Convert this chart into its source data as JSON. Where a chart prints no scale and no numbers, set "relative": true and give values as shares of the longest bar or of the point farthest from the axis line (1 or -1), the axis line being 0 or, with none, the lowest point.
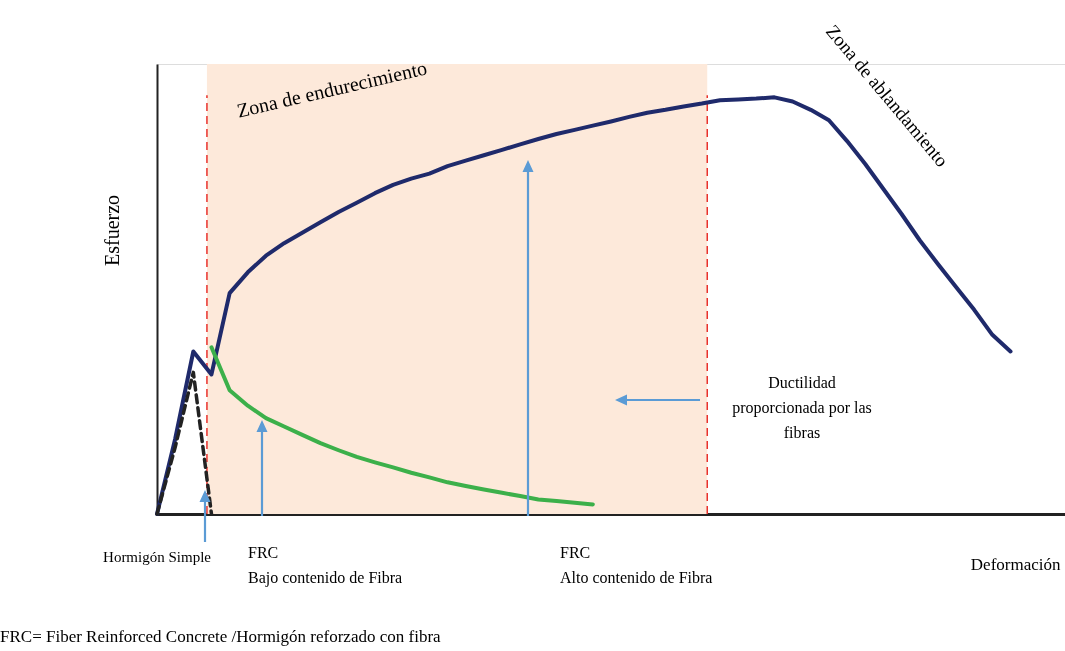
{
  "chart_data": {
    "type": "line",
    "relative": true,
    "grid": false,
    "marker": "none",
    "ylabel": "Esfuerzo",
    "xlabel": "Deformación",
    "categories": [
      null,
      null,
      null,
      null,
      null,
      null,
      null,
      null,
      null,
      null,
      null,
      null,
      null,
      null,
      null,
      null,
      null,
      null,
      null,
      null,
      null,
      null,
      null,
      null,
      null,
      null,
      null,
      null,
      null,
      null,
      null,
      null,
      null,
      null,
      null,
      null,
      null,
      null,
      null,
      null,
      null,
      null,
      null,
      null,
      null,
      null,
      null,
      null
    ],
    "series": [
      {
        "color": "#1f2a6b",
        "line_style": "solid",
        "values": [
          0,
          0.18,
          0.39,
          0.335,
          0.53,
          0.58,
          0.62,
          0.65,
          0.675,
          0.7,
          0.725,
          0.747,
          0.77,
          0.79,
          0.805,
          0.817,
          0.835,
          0.848,
          0.861,
          0.874,
          0.887,
          0.9,
          0.912,
          0.922,
          0.932,
          0.942,
          0.953,
          0.963,
          0.97,
          0.978,
          0.985,
          0.993,
          0.995,
          0.997,
          1.0,
          0.99,
          0.97,
          0.945,
          0.895,
          0.84,
          0.78,
          0.72,
          0.657,
          0.6,
          0.545,
          0.49,
          0.43,
          0.39
        ]
      },
      {
        "color": "#3cb04a",
        "line_style": "solid",
        "values": [
          null,
          null,
          null,
          0.4,
          0.297,
          0.26,
          0.23,
          0.21,
          0.19,
          0.17,
          0.153,
          0.137,
          0.124,
          0.112,
          0.099,
          0.088,
          0.076,
          0.067,
          0.059,
          0.051,
          0.043,
          0.035,
          0.031,
          0.027,
          0.023,
          null,
          null,
          null,
          null,
          null,
          null,
          null,
          null,
          null,
          null,
          null,
          null,
          null,
          null,
          null,
          null,
          null,
          null,
          null,
          null,
          null,
          null,
          null
        ]
      },
      {
        "color": "#222222",
        "line_style": "dashed",
        "values": [
          0,
          0.16,
          0.34,
          0,
          null,
          null,
          null,
          null,
          null,
          null,
          null,
          null,
          null,
          null,
          null,
          null,
          null,
          null,
          null,
          null,
          null,
          null,
          null,
          null,
          null,
          null,
          null,
          null,
          null,
          null,
          null,
          null,
          null,
          null,
          null,
          null,
          null,
          null,
          null,
          null,
          null,
          null,
          null,
          null,
          null,
          null,
          null,
          null
        ]
      }
    ],
    "annotations": [
      "Zona de endurecimiento",
      "Zona de ablandamiento",
      "Ductilidad\nproporcionada por las\nfibras",
      "Hormigón Simple",
      "FRC\nBajo contenido de Fibra",
      "FRC\nAlto contenido de Fibra",
      "FRC= Fiber Reinforced Concrete /Hormigón reforzado con fibra"
    ]
  }
}
